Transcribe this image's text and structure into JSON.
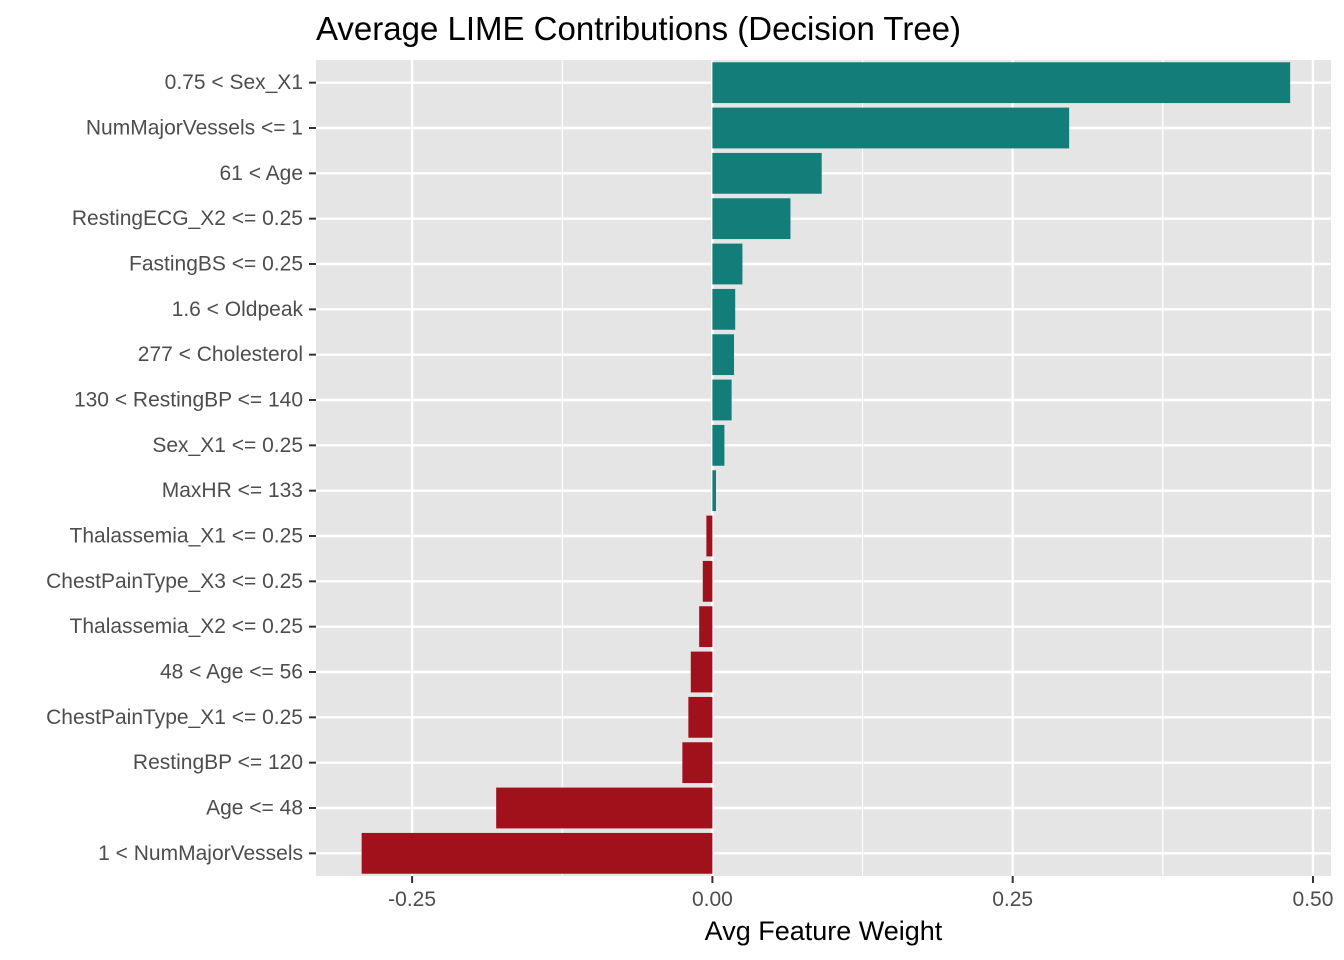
{
  "chart_data": {
    "type": "bar",
    "orientation": "horizontal",
    "title": "Average LIME Contributions (Decision Tree)",
    "xlabel": "Avg Feature Weight",
    "ylabel": "",
    "xlim": [
      -0.33,
      0.515
    ],
    "xticks": [
      -0.25,
      0.0,
      0.25,
      0.5
    ],
    "xtick_labels": [
      "-0.25",
      "0.00",
      "0.25",
      "0.50"
    ],
    "grid": true,
    "legend": "none",
    "categories": [
      "0.75 < Sex_X1",
      "NumMajorVessels <= 1",
      "61 < Age",
      "RestingECG_X2 <= 0.25",
      "FastingBS <= 0.25",
      "1.6 < Oldpeak",
      "277 < Cholesterol",
      "130 < RestingBP <= 140",
      "Sex_X1 <= 0.25",
      "MaxHR <= 133",
      "Thalassemia_X1 <= 0.25",
      "ChestPainType_X3 <= 0.25",
      "Thalassemia_X2 <= 0.25",
      "48 < Age <= 56",
      "ChestPainType_X1 <= 0.25",
      "RestingBP <= 120",
      "Age <= 48",
      "1 < NumMajorVessels"
    ],
    "values": [
      0.481,
      0.297,
      0.091,
      0.065,
      0.025,
      0.019,
      0.018,
      0.016,
      0.01,
      0.003,
      -0.005,
      -0.008,
      -0.011,
      -0.018,
      -0.02,
      -0.025,
      -0.18,
      -0.292
    ],
    "colors": {
      "positive": "#127d79",
      "negative": "#a0111c"
    }
  }
}
